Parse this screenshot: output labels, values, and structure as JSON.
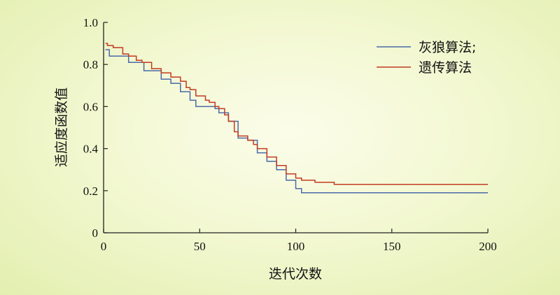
{
  "chart_data": {
    "type": "line",
    "xlabel": "迭代次数",
    "ylabel": "适应度函数值",
    "xlim": [
      0,
      200
    ],
    "ylim": [
      0,
      1.0
    ],
    "xticks": [
      0,
      50,
      100,
      150,
      200
    ],
    "yticks": [
      0,
      0.2,
      0.4,
      0.6,
      0.8,
      1.0
    ],
    "xtick_labels": [
      "0",
      "50",
      "100",
      "150",
      "200"
    ],
    "ytick_labels": [
      "0",
      "0.2",
      "0.4",
      "0.6",
      "0.8",
      "1.0"
    ],
    "grid": false,
    "legend_position": "top-right",
    "series": [
      {
        "name": "灰狼算法;",
        "color": "#4a6aa8",
        "x": [
          1,
          2,
          3,
          5,
          10,
          13,
          18,
          21,
          25,
          30,
          35,
          40,
          45,
          48,
          52,
          55,
          58,
          60,
          65,
          70,
          75,
          80,
          85,
          90,
          95,
          100,
          103,
          105,
          110,
          120,
          150,
          200
        ],
        "y": [
          0.87,
          0.87,
          0.84,
          0.84,
          0.84,
          0.81,
          0.81,
          0.77,
          0.77,
          0.73,
          0.71,
          0.67,
          0.63,
          0.6,
          0.6,
          0.6,
          0.59,
          0.57,
          0.53,
          0.45,
          0.44,
          0.38,
          0.34,
          0.3,
          0.25,
          0.21,
          0.19,
          0.19,
          0.19,
          0.19,
          0.19,
          0.19
        ]
      },
      {
        "name": "遗传算法",
        "color": "#c23b22",
        "x": [
          1,
          2,
          5,
          10,
          13,
          17,
          20,
          25,
          30,
          35,
          40,
          43,
          45,
          48,
          50,
          53,
          55,
          58,
          60,
          63,
          65,
          68,
          70,
          75,
          78,
          80,
          85,
          90,
          95,
          100,
          103,
          105,
          110,
          120,
          150,
          200
        ],
        "y": [
          0.9,
          0.89,
          0.88,
          0.85,
          0.84,
          0.82,
          0.81,
          0.78,
          0.76,
          0.74,
          0.72,
          0.69,
          0.68,
          0.65,
          0.65,
          0.63,
          0.62,
          0.6,
          0.59,
          0.56,
          0.53,
          0.48,
          0.46,
          0.44,
          0.42,
          0.4,
          0.36,
          0.32,
          0.28,
          0.26,
          0.25,
          0.25,
          0.24,
          0.23,
          0.23,
          0.23
        ]
      }
    ]
  }
}
